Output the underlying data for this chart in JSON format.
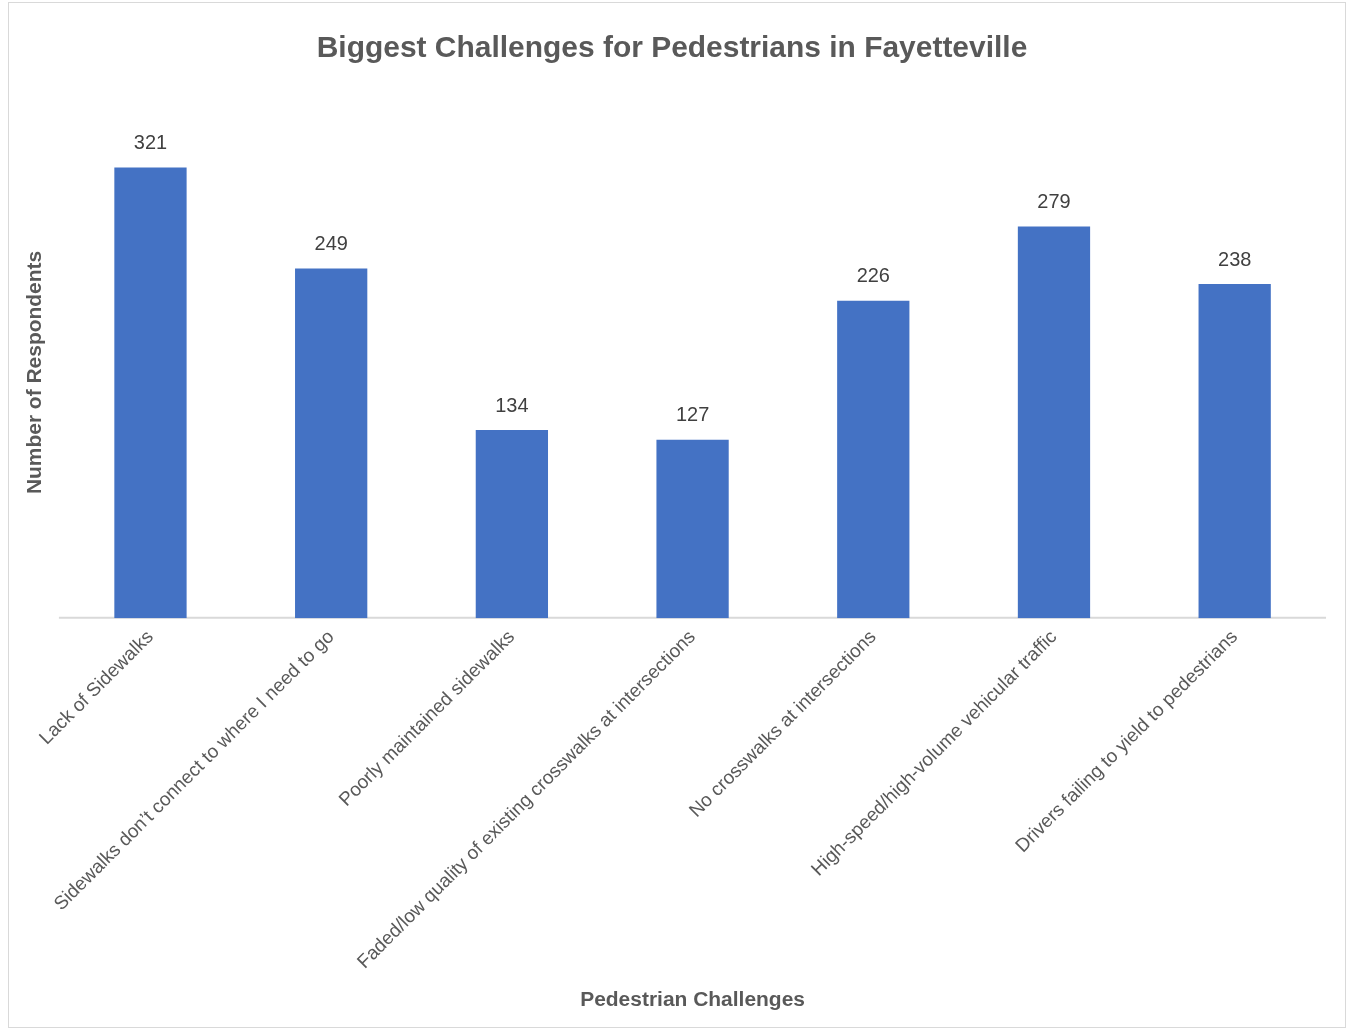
{
  "chart_data": {
    "type": "bar",
    "title": "Biggest Challenges for Pedestrians in Fayetteville",
    "xlabel": "Pedestrian Challenges",
    "ylabel": "Number of Respondents",
    "categories": [
      "Lack of Sidewalks",
      "Sidewalks don’t connect to where I need to go",
      "Poorly maintained sidewalks",
      "Faded/low quality of existing crosswalks at intersections",
      "No crosswalks at intersections",
      "High-speed/high-volume vehicular traffic",
      "Drivers failing to yield to pedestrians"
    ],
    "values": [
      321,
      249,
      134,
      127,
      226,
      279,
      238
    ],
    "color": "#4472c4",
    "data_labels": true,
    "grid": false,
    "legend": false
  }
}
